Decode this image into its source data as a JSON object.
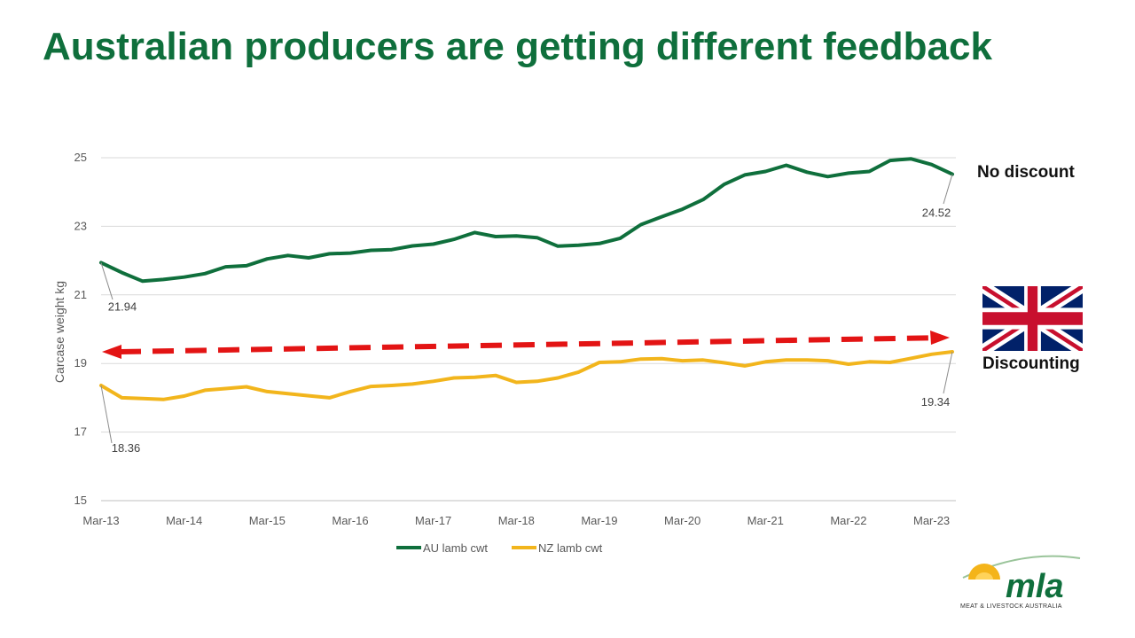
{
  "title": "Australian producers are getting different feedback",
  "annotations": {
    "no_discount": "No discount",
    "discounting": "Discounting"
  },
  "logo": {
    "name": "mla",
    "tagline": "MEAT & LIVESTOCK AUSTRALIA"
  },
  "colors": {
    "title": "#0f6f3c",
    "au_line": "#0f6f3c",
    "nz_line": "#f2b51c",
    "arrow": "#e31414",
    "grid": "#d9d9d9"
  },
  "chart_data": {
    "type": "line",
    "title": "",
    "xlabel": "",
    "ylabel": "Carcase weight kg",
    "ylim": [
      15,
      25
    ],
    "yticks": [
      "15",
      "17",
      "19",
      "21",
      "23",
      "25"
    ],
    "x_start": "Mar-13",
    "x_step_months": 3,
    "xticks": [
      "Mar-13",
      "Mar-14",
      "Mar-15",
      "Mar-16",
      "Mar-17",
      "Mar-18",
      "Mar-19",
      "Mar-20",
      "Mar-21",
      "Mar-22",
      "Mar-23"
    ],
    "legend": "bottom",
    "grid": true,
    "series": [
      {
        "name": "AU lamb cwt",
        "color": "#0f6f3c",
        "values": [
          21.94,
          21.65,
          21.4,
          21.45,
          21.52,
          21.62,
          21.82,
          21.85,
          22.05,
          22.15,
          22.08,
          22.2,
          22.22,
          22.3,
          22.32,
          22.43,
          22.48,
          22.62,
          22.82,
          22.7,
          22.72,
          22.67,
          22.42,
          22.45,
          22.5,
          22.65,
          23.05,
          23.28,
          23.5,
          23.78,
          24.22,
          24.5,
          24.6,
          24.78,
          24.58,
          24.45,
          24.55,
          24.6,
          24.92,
          24.97,
          24.8,
          24.52
        ]
      },
      {
        "name": "NZ lamb cwt",
        "color": "#f2b51c",
        "values": [
          18.36,
          18.0,
          17.98,
          17.95,
          18.05,
          18.22,
          18.27,
          18.32,
          18.18,
          18.12,
          18.06,
          18.0,
          18.18,
          18.33,
          18.36,
          18.4,
          18.48,
          18.58,
          18.6,
          18.65,
          18.45,
          18.48,
          18.58,
          18.75,
          19.03,
          19.05,
          19.13,
          19.14,
          19.08,
          19.1,
          19.02,
          18.93,
          19.05,
          19.1,
          19.1,
          19.08,
          18.98,
          19.05,
          19.03,
          19.15,
          19.27,
          19.34
        ]
      }
    ],
    "data_labels": [
      {
        "series": "AU lamb cwt",
        "point": "first",
        "text": "21.94"
      },
      {
        "series": "AU lamb cwt",
        "point": "last",
        "text": "24.52"
      },
      {
        "series": "NZ lamb cwt",
        "point": "first",
        "text": "18.36"
      },
      {
        "series": "NZ lamb cwt",
        "point": "last",
        "text": "19.34"
      }
    ]
  }
}
